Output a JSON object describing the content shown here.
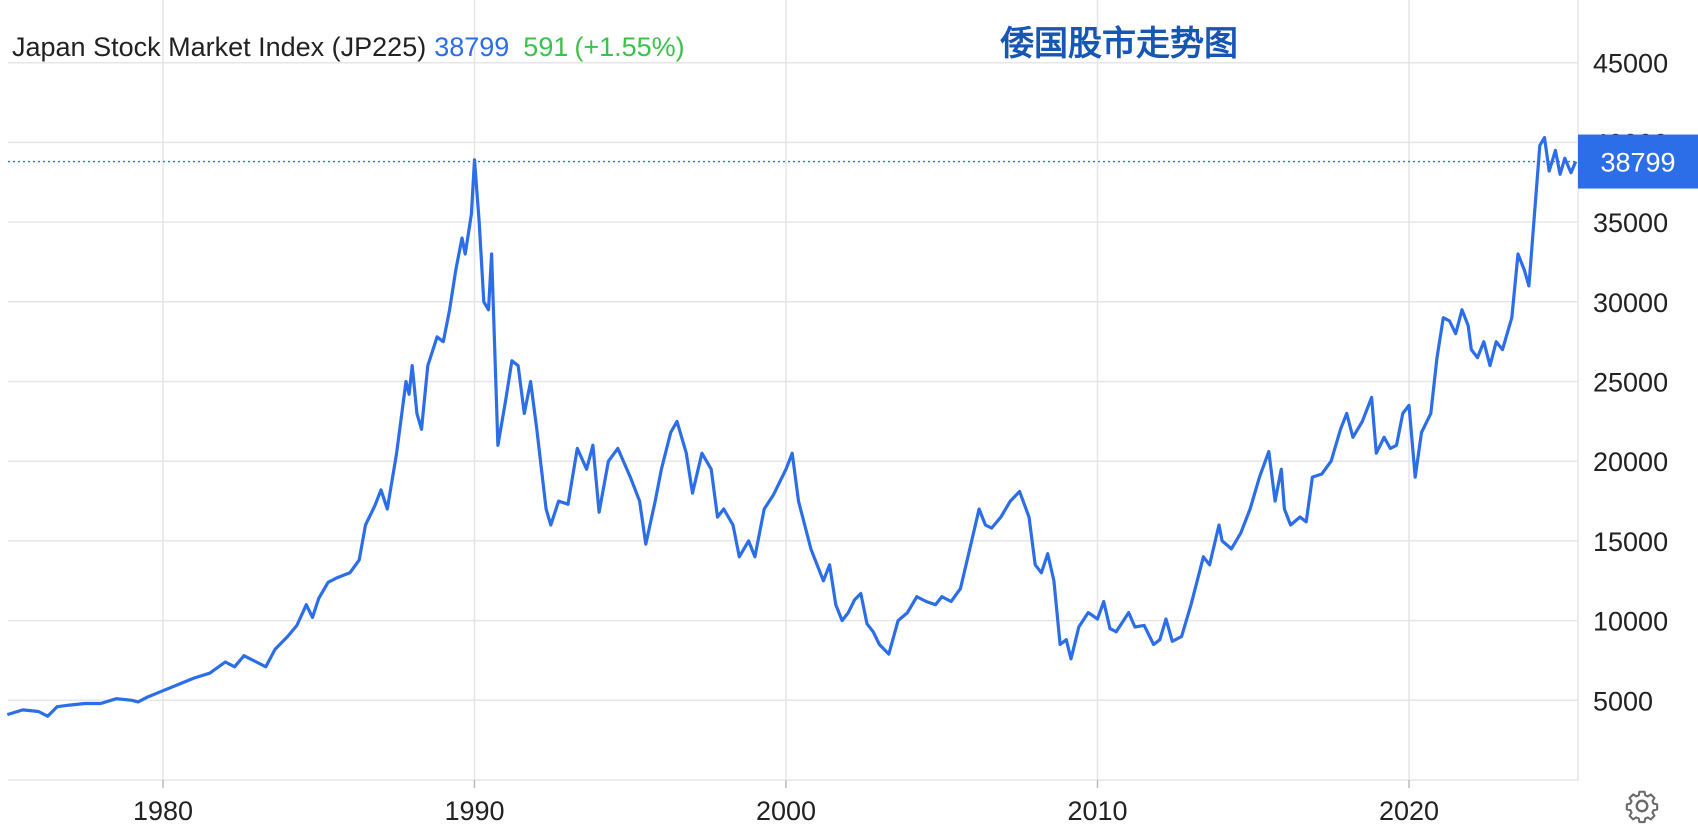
{
  "header": {
    "name": "Japan Stock Market Index (JP225)",
    "price": "38799",
    "change": "591",
    "change_pct": "(+1.55%)"
  },
  "overlay_title": "倭国股市走势图",
  "last_price_badge": "38799",
  "colors": {
    "line": "#2c6ee8",
    "grid": "#e6e6e6",
    "up": "#3cc24a",
    "badge_bg": "#2c6ee8",
    "overlay_title": "#1657b5"
  },
  "icons": {
    "settings": "gear-icon"
  },
  "chart_data": {
    "type": "line",
    "title": "Japan Stock Market Index (JP225)",
    "xlabel": "",
    "ylabel": "",
    "xlim": [
      1975,
      2025.5
    ],
    "ylim": [
      0,
      47000
    ],
    "x_ticks": [
      "1980",
      "1990",
      "2000",
      "2010",
      "2020"
    ],
    "y_ticks": [
      "5000",
      "10000",
      "15000",
      "20000",
      "25000",
      "30000",
      "35000",
      "40000",
      "45000"
    ],
    "grid": true,
    "last_value": 38799,
    "series": [
      {
        "values": [
          [
            1975.0,
            4100
          ],
          [
            1975.5,
            4400
          ],
          [
            1976.0,
            4300
          ],
          [
            1976.3,
            4000
          ],
          [
            1976.6,
            4600
          ],
          [
            1977.0,
            4700
          ],
          [
            1977.5,
            4800
          ],
          [
            1978.0,
            4800
          ],
          [
            1978.5,
            5100
          ],
          [
            1979.0,
            5000
          ],
          [
            1979.2,
            4900
          ],
          [
            1979.5,
            5200
          ],
          [
            1980.0,
            5600
          ],
          [
            1980.5,
            6000
          ],
          [
            1981.0,
            6400
          ],
          [
            1981.5,
            6700
          ],
          [
            1982.0,
            7400
          ],
          [
            1982.3,
            7100
          ],
          [
            1982.6,
            7800
          ],
          [
            1983.0,
            7400
          ],
          [
            1983.3,
            7100
          ],
          [
            1983.6,
            8200
          ],
          [
            1984.0,
            9000
          ],
          [
            1984.3,
            9700
          ],
          [
            1984.6,
            11000
          ],
          [
            1984.8,
            10200
          ],
          [
            1985.0,
            11400
          ],
          [
            1985.3,
            12400
          ],
          [
            1985.6,
            12700
          ],
          [
            1986.0,
            13000
          ],
          [
            1986.3,
            13800
          ],
          [
            1986.5,
            16000
          ],
          [
            1986.8,
            17200
          ],
          [
            1987.0,
            18200
          ],
          [
            1987.2,
            17000
          ],
          [
            1987.5,
            20500
          ],
          [
            1987.8,
            25000
          ],
          [
            1987.9,
            24200
          ],
          [
            1988.0,
            26000
          ],
          [
            1988.15,
            23000
          ],
          [
            1988.3,
            22000
          ],
          [
            1988.5,
            26000
          ],
          [
            1988.8,
            27800
          ],
          [
            1989.0,
            27500
          ],
          [
            1989.2,
            29500
          ],
          [
            1989.4,
            32000
          ],
          [
            1989.6,
            34000
          ],
          [
            1989.7,
            33000
          ],
          [
            1989.9,
            35500
          ],
          [
            1990.0,
            38900
          ],
          [
            1990.15,
            35000
          ],
          [
            1990.3,
            30000
          ],
          [
            1990.45,
            29500
          ],
          [
            1990.55,
            33000
          ],
          [
            1990.75,
            21000
          ],
          [
            1991.0,
            23800
          ],
          [
            1991.2,
            26300
          ],
          [
            1991.4,
            26000
          ],
          [
            1991.6,
            23000
          ],
          [
            1991.8,
            25000
          ],
          [
            1992.0,
            22000
          ],
          [
            1992.3,
            17000
          ],
          [
            1992.45,
            16000
          ],
          [
            1992.7,
            17500
          ],
          [
            1993.0,
            17300
          ],
          [
            1993.3,
            20800
          ],
          [
            1993.6,
            19500
          ],
          [
            1993.8,
            21000
          ],
          [
            1994.0,
            16800
          ],
          [
            1994.3,
            20000
          ],
          [
            1994.6,
            20800
          ],
          [
            1995.0,
            19000
          ],
          [
            1995.3,
            17500
          ],
          [
            1995.5,
            14800
          ],
          [
            1995.8,
            17500
          ],
          [
            1996.0,
            19500
          ],
          [
            1996.3,
            21800
          ],
          [
            1996.5,
            22500
          ],
          [
            1996.8,
            20500
          ],
          [
            1997.0,
            18000
          ],
          [
            1997.3,
            20500
          ],
          [
            1997.6,
            19500
          ],
          [
            1997.8,
            16500
          ],
          [
            1998.0,
            17000
          ],
          [
            1998.3,
            16000
          ],
          [
            1998.5,
            14000
          ],
          [
            1998.8,
            15000
          ],
          [
            1999.0,
            14000
          ],
          [
            1999.3,
            17000
          ],
          [
            1999.6,
            17900
          ],
          [
            2000.0,
            19500
          ],
          [
            2000.2,
            20500
          ],
          [
            2000.4,
            17500
          ],
          [
            2000.6,
            16000
          ],
          [
            2000.8,
            14500
          ],
          [
            2001.0,
            13500
          ],
          [
            2001.2,
            12500
          ],
          [
            2001.4,
            13500
          ],
          [
            2001.6,
            11000
          ],
          [
            2001.8,
            10000
          ],
          [
            2002.0,
            10500
          ],
          [
            2002.2,
            11300
          ],
          [
            2002.4,
            11700
          ],
          [
            2002.6,
            9800
          ],
          [
            2002.8,
            9300
          ],
          [
            2003.0,
            8500
          ],
          [
            2003.3,
            7900
          ],
          [
            2003.6,
            10000
          ],
          [
            2003.9,
            10500
          ],
          [
            2004.2,
            11500
          ],
          [
            2004.5,
            11200
          ],
          [
            2004.8,
            11000
          ],
          [
            2005.0,
            11500
          ],
          [
            2005.3,
            11200
          ],
          [
            2005.6,
            12000
          ],
          [
            2005.9,
            14500
          ],
          [
            2006.2,
            17000
          ],
          [
            2006.4,
            16000
          ],
          [
            2006.6,
            15800
          ],
          [
            2006.9,
            16500
          ],
          [
            2007.2,
            17500
          ],
          [
            2007.5,
            18100
          ],
          [
            2007.8,
            16500
          ],
          [
            2008.0,
            13500
          ],
          [
            2008.2,
            13000
          ],
          [
            2008.4,
            14200
          ],
          [
            2008.6,
            12500
          ],
          [
            2008.8,
            8500
          ],
          [
            2009.0,
            8800
          ],
          [
            2009.15,
            7600
          ],
          [
            2009.4,
            9600
          ],
          [
            2009.7,
            10500
          ],
          [
            2010.0,
            10100
          ],
          [
            2010.2,
            11200
          ],
          [
            2010.4,
            9500
          ],
          [
            2010.6,
            9300
          ],
          [
            2010.8,
            9900
          ],
          [
            2011.0,
            10500
          ],
          [
            2011.2,
            9600
          ],
          [
            2011.5,
            9700
          ],
          [
            2011.8,
            8500
          ],
          [
            2012.0,
            8800
          ],
          [
            2012.2,
            10100
          ],
          [
            2012.4,
            8700
          ],
          [
            2012.7,
            9000
          ],
          [
            2013.0,
            11000
          ],
          [
            2013.2,
            12500
          ],
          [
            2013.4,
            14000
          ],
          [
            2013.6,
            13500
          ],
          [
            2013.9,
            16000
          ],
          [
            2014.0,
            15000
          ],
          [
            2014.3,
            14500
          ],
          [
            2014.6,
            15500
          ],
          [
            2014.9,
            17000
          ],
          [
            2015.2,
            19000
          ],
          [
            2015.5,
            20600
          ],
          [
            2015.7,
            17500
          ],
          [
            2015.9,
            19500
          ],
          [
            2016.0,
            17000
          ],
          [
            2016.2,
            16000
          ],
          [
            2016.5,
            16500
          ],
          [
            2016.7,
            16200
          ],
          [
            2016.9,
            19000
          ],
          [
            2017.2,
            19200
          ],
          [
            2017.5,
            20000
          ],
          [
            2017.8,
            22000
          ],
          [
            2018.0,
            23000
          ],
          [
            2018.2,
            21500
          ],
          [
            2018.5,
            22500
          ],
          [
            2018.8,
            24000
          ],
          [
            2018.95,
            20500
          ],
          [
            2019.2,
            21500
          ],
          [
            2019.4,
            20800
          ],
          [
            2019.6,
            21000
          ],
          [
            2019.8,
            23000
          ],
          [
            2020.0,
            23500
          ],
          [
            2020.2,
            19000
          ],
          [
            2020.4,
            21800
          ],
          [
            2020.7,
            23000
          ],
          [
            2020.9,
            26500
          ],
          [
            2021.1,
            29000
          ],
          [
            2021.3,
            28800
          ],
          [
            2021.5,
            28000
          ],
          [
            2021.7,
            29500
          ],
          [
            2021.9,
            28500
          ],
          [
            2022.0,
            27000
          ],
          [
            2022.2,
            26500
          ],
          [
            2022.4,
            27500
          ],
          [
            2022.6,
            26000
          ],
          [
            2022.8,
            27500
          ],
          [
            2023.0,
            27000
          ],
          [
            2023.3,
            29000
          ],
          [
            2023.5,
            33000
          ],
          [
            2023.7,
            32000
          ],
          [
            2023.85,
            31000
          ],
          [
            2023.95,
            33500
          ],
          [
            2024.2,
            39800
          ],
          [
            2024.35,
            40300
          ],
          [
            2024.5,
            38200
          ],
          [
            2024.7,
            39500
          ],
          [
            2024.85,
            38000
          ],
          [
            2025.0,
            39000
          ],
          [
            2025.2,
            38100
          ],
          [
            2025.35,
            38799
          ]
        ]
      }
    ]
  }
}
